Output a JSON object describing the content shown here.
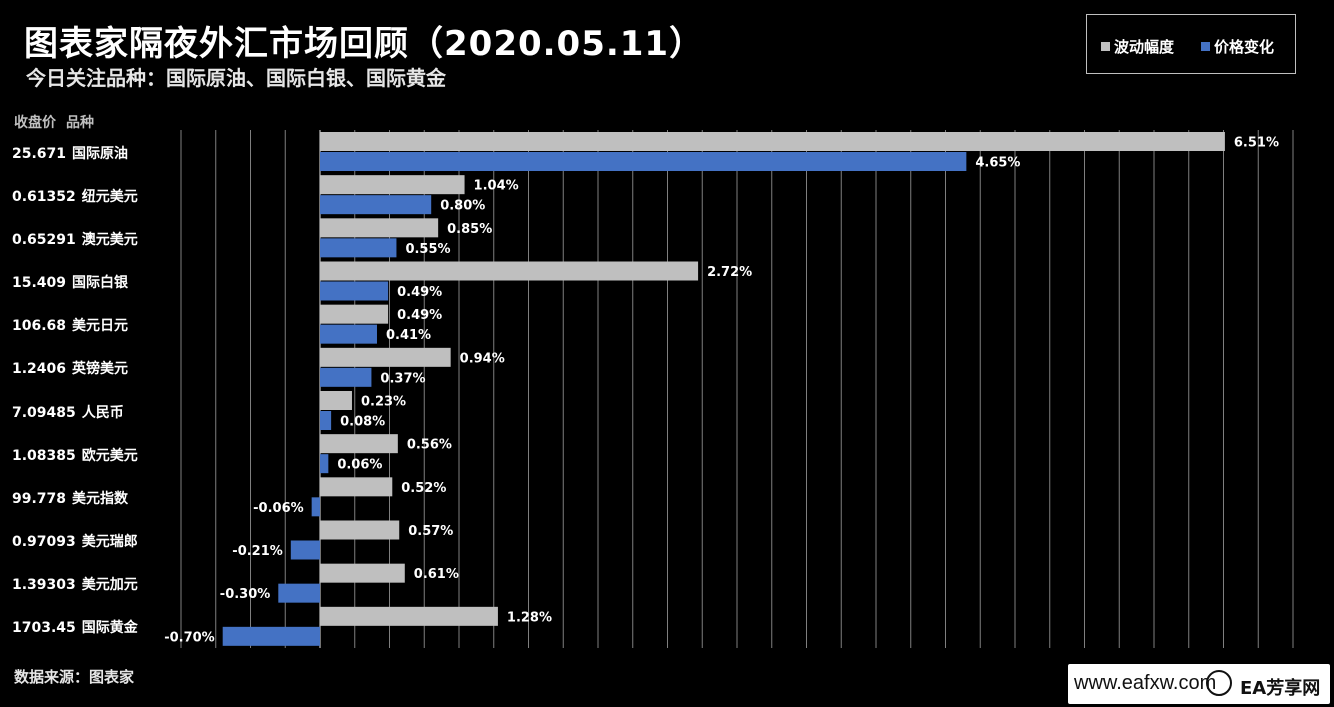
{
  "header": {
    "title": "图表家隔夜外汇市场回顾（2020.05.11）",
    "subtitle": "今日关注品种：国际原油、国际白银、国际黄金"
  },
  "columns": {
    "price": "收盘价",
    "name": "品种"
  },
  "source": "数据来源：图表家",
  "watermark": {
    "url": "www.eafxw.com",
    "brand": "EA芳享网",
    "icon": "logo-icon"
  },
  "colors": {
    "volatility": "#bfbfbf",
    "change": "#4472c4",
    "grid": "#7f7f7f",
    "background": "#000000"
  },
  "chart_data": {
    "type": "bar",
    "orientation": "horizontal",
    "unit": "%",
    "xlim": [
      -1.5,
      7.0
    ],
    "grid": true,
    "legend_position": "top-right",
    "categories": [
      "国际原油",
      "纽元美元",
      "澳元美元",
      "国际白银",
      "美元日元",
      "英镑美元",
      "人民币",
      "欧元美元",
      "美元指数",
      "美元瑞郎",
      "美元加元",
      "国际黄金"
    ],
    "close_prices": [
      "25.671",
      "0.61352",
      "0.65291",
      "15.409",
      "106.68",
      "1.2406",
      "7.09485",
      "1.08385",
      "99.778",
      "0.97093",
      "1.39303",
      "1703.45"
    ],
    "series": [
      {
        "name": "波动幅度",
        "values": [
          6.51,
          1.04,
          0.85,
          2.72,
          0.49,
          0.94,
          0.23,
          0.56,
          0.52,
          0.57,
          0.61,
          1.28
        ],
        "labels": [
          "6.51%",
          "1.04%",
          "0.85%",
          "2.72%",
          "0.49%",
          "0.94%",
          "0.23%",
          "0.56%",
          "0.52%",
          "0.57%",
          "0.61%",
          "1.28%"
        ]
      },
      {
        "name": "价格变化",
        "values": [
          4.65,
          0.8,
          0.55,
          0.49,
          0.41,
          0.37,
          0.08,
          0.06,
          -0.06,
          -0.21,
          -0.3,
          -0.7
        ],
        "labels": [
          "4.65%",
          "0.80%",
          "0.55%",
          "0.49%",
          "0.41%",
          "0.37%",
          "0.08%",
          "0.06%",
          "-0.06%",
          "-0.21%",
          "-0.30%",
          "-0.70%"
        ]
      }
    ]
  }
}
